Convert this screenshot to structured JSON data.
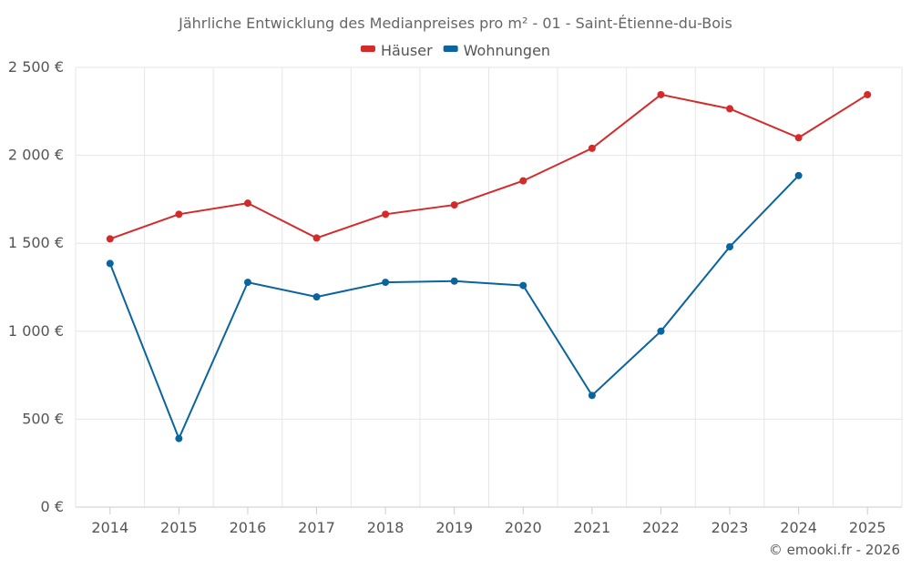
{
  "chart_data": {
    "type": "line",
    "title": "Jährliche Entwicklung des Medianpreises pro m² - 01 - Saint-Étienne-du-Bois",
    "categories": [
      "2014",
      "2015",
      "2016",
      "2017",
      "2018",
      "2019",
      "2020",
      "2021",
      "2022",
      "2023",
      "2024",
      "2025"
    ],
    "series": [
      {
        "name": "Häuser",
        "color": "#d42a2a",
        "values": [
          1525,
          1665,
          1728,
          1530,
          1665,
          1718,
          1855,
          2040,
          2345,
          2265,
          2100,
          2345
        ]
      },
      {
        "name": "Wohnungen",
        "color": "#0a649e",
        "values": [
          1385,
          390,
          1278,
          1195,
          1278,
          1285,
          1260,
          635,
          1000,
          1480,
          1885,
          null
        ]
      }
    ],
    "y_ticks": [
      0,
      500,
      1000,
      1500,
      2000,
      2500
    ],
    "y_tick_labels": [
      "0 €",
      "500 €",
      "1 000 €",
      "1 500 €",
      "2 000 €",
      "2 500 €"
    ],
    "ylim": [
      0,
      2500
    ],
    "grid": true,
    "legend_position": "top-center"
  },
  "credit": "© emooki.fr - 2026"
}
